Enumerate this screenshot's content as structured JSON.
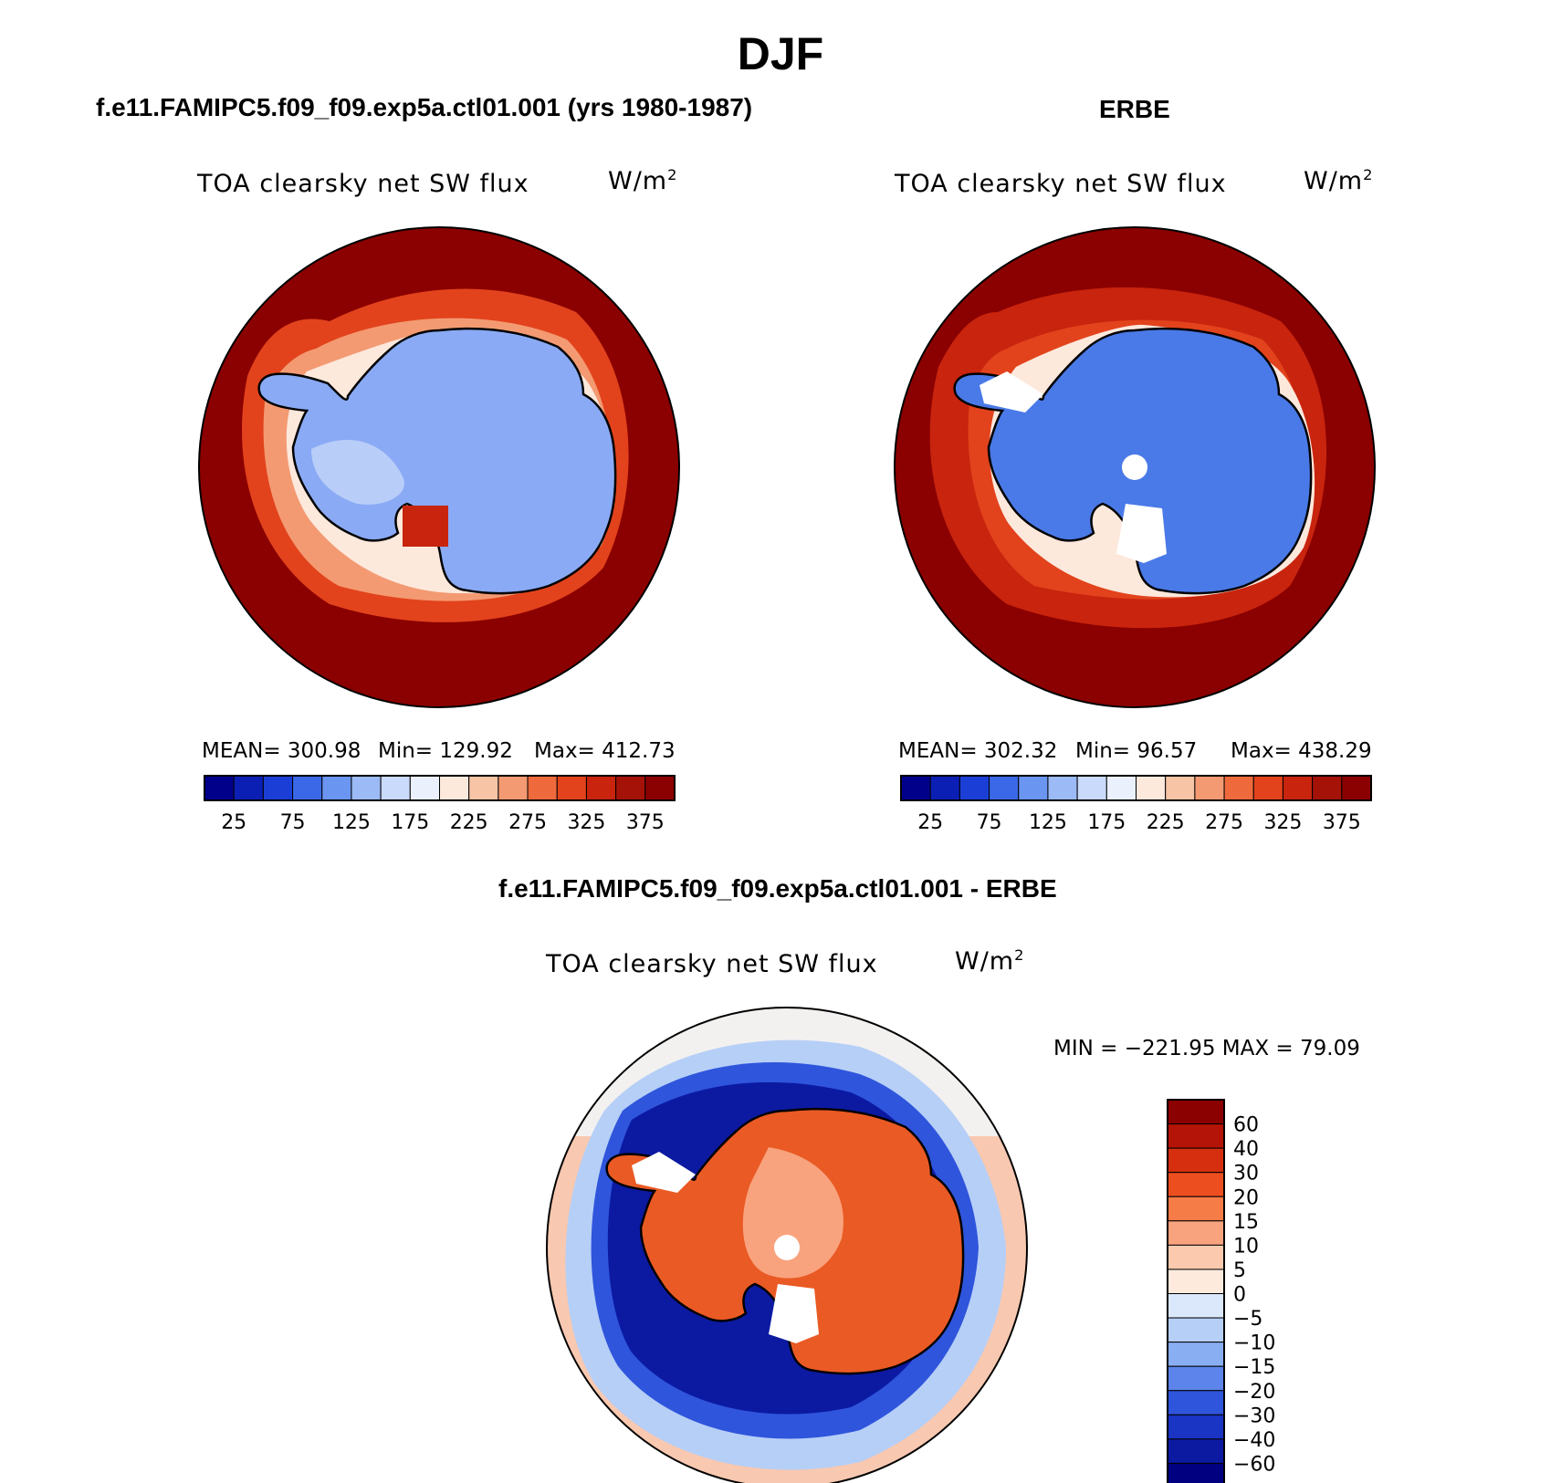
{
  "figure": {
    "title": "DJF",
    "variable": "TOA clearsky net SW flux",
    "units_base": "W/m",
    "units_exp": "2"
  },
  "panels": {
    "model": {
      "title": "f.e11.FAMIPC5.f09_f09.exp5a.ctl01.001 (yrs 1980-1987)",
      "mean_text": "MEAN= 300.98",
      "min_text": "Min= 129.92",
      "max_text": "Max= 412.73"
    },
    "obs": {
      "title": "ERBE",
      "mean_text": "MEAN= 302.32",
      "min_text": "Min=  96.57",
      "max_text": "Max= 438.29"
    },
    "diff": {
      "title": "f.e11.FAMIPC5.f09_f09.exp5a.ctl01.001 - ERBE",
      "minmax_text": "MIN = −221.95 MAX =  79.09"
    }
  },
  "colorbar_top": {
    "labels": [
      "25",
      "75",
      "125",
      "175",
      "225",
      "275",
      "325",
      "375"
    ],
    "colors": [
      "#00008b",
      "#0c1fb5",
      "#1b3fd6",
      "#3a68e6",
      "#6a95f0",
      "#9cbaf5",
      "#c9dafa",
      "#eaf1fd",
      "#fde8dc",
      "#f8c4a6",
      "#f39a72",
      "#ee6a3c",
      "#e2431c",
      "#c8240e",
      "#a41208",
      "#8b0000"
    ]
  },
  "colorbar_diff": {
    "labels": [
      "60",
      "40",
      "30",
      "20",
      "15",
      "10",
      "5",
      "0",
      "−5",
      "−10",
      "−15",
      "−20",
      "−30",
      "−40",
      "−60"
    ],
    "colors": [
      "#8b0000",
      "#b41407",
      "#d62f10",
      "#ec4e20",
      "#f57b47",
      "#f8a37e",
      "#fbcaae",
      "#fdeadc",
      "#dbe8fb",
      "#b6cff7",
      "#8aaef2",
      "#5c84ea",
      "#2f55dc",
      "#1a34c4",
      "#0c1aa2",
      "#000080"
    ]
  },
  "colors": {
    "ocean_high": "#8b0000",
    "ice_model": "#8aaaf5",
    "ice_obs": "#4a7ae8",
    "diff_land": "#ea5a24",
    "diff_ocean_neg": "#0c1aa2",
    "diff_far": "#f8c8b0"
  }
}
